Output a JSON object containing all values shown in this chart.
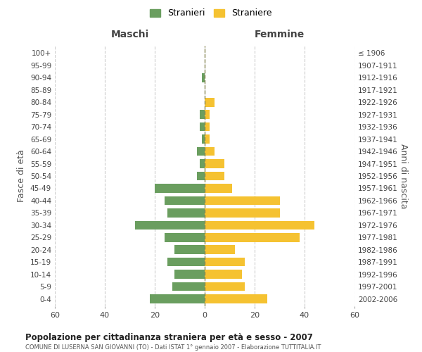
{
  "age_groups": [
    "100+",
    "95-99",
    "90-94",
    "85-89",
    "80-84",
    "75-79",
    "70-74",
    "65-69",
    "60-64",
    "55-59",
    "50-54",
    "45-49",
    "40-44",
    "35-39",
    "30-34",
    "25-29",
    "20-24",
    "15-19",
    "10-14",
    "5-9",
    "0-4"
  ],
  "birth_years": [
    "≤ 1906",
    "1907-1911",
    "1912-1916",
    "1917-1921",
    "1922-1926",
    "1927-1931",
    "1932-1936",
    "1937-1941",
    "1942-1946",
    "1947-1951",
    "1952-1956",
    "1957-1961",
    "1962-1966",
    "1967-1971",
    "1972-1976",
    "1977-1981",
    "1982-1986",
    "1987-1991",
    "1992-1996",
    "1997-2001",
    "2002-2006"
  ],
  "males": [
    0,
    0,
    1,
    0,
    0,
    2,
    2,
    1,
    3,
    2,
    3,
    20,
    16,
    15,
    28,
    16,
    12,
    15,
    12,
    13,
    22
  ],
  "females": [
    0,
    0,
    0,
    0,
    4,
    2,
    2,
    2,
    4,
    8,
    8,
    11,
    30,
    30,
    44,
    38,
    12,
    16,
    15,
    16,
    25
  ],
  "male_color": "#6a9e5f",
  "female_color": "#f5c231",
  "background_color": "#ffffff",
  "grid_color": "#cccccc",
  "title": "Popolazione per cittadinanza straniera per età e sesso - 2007",
  "subtitle": "COMUNE DI LUSERNA SAN GIOVANNI (TO) - Dati ISTAT 1° gennaio 2007 - Elaborazione TUTTITALIA.IT",
  "xlabel_left": "Maschi",
  "xlabel_right": "Femmine",
  "ylabel_left": "Fasce di età",
  "ylabel_right": "Anni di nascita",
  "legend_male": "Stranieri",
  "legend_female": "Straniere",
  "xlim": 60,
  "dpi": 100,
  "figsize": [
    6.0,
    5.0
  ]
}
